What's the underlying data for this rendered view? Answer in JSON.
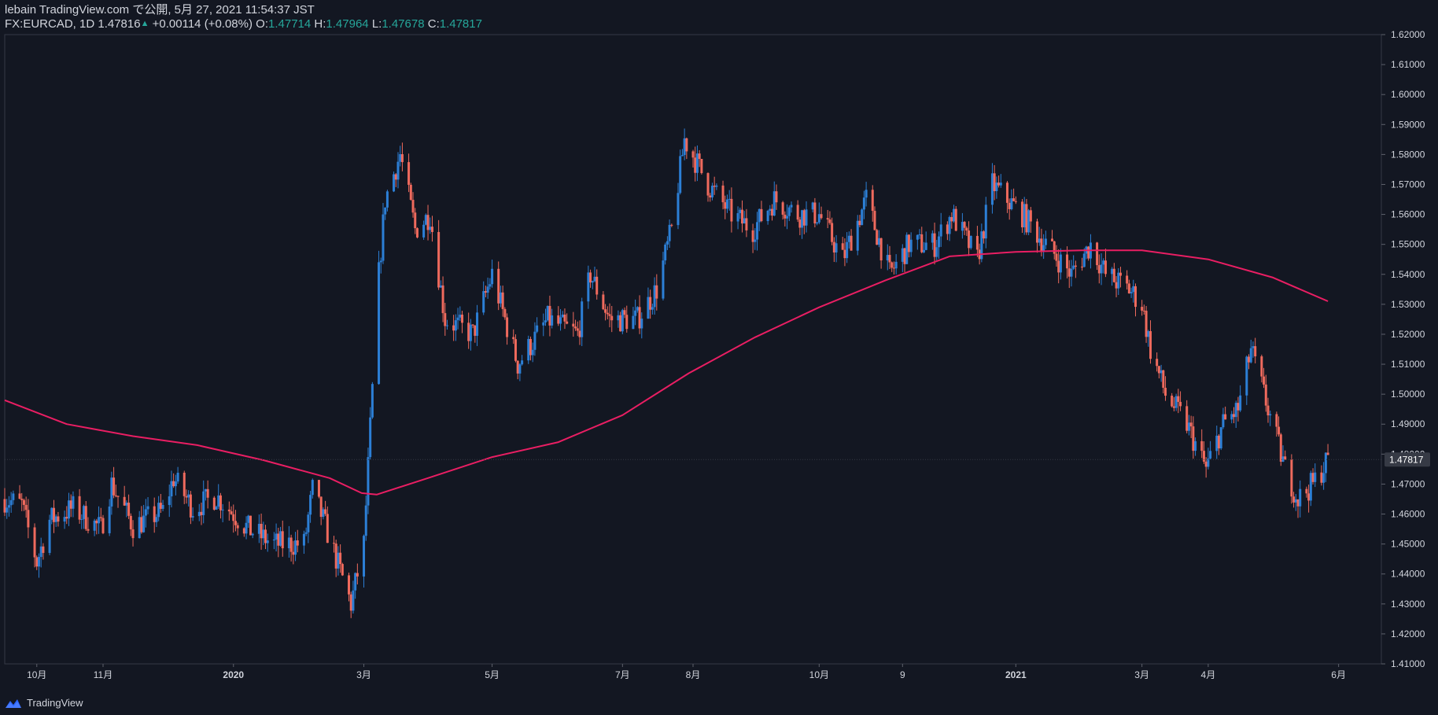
{
  "header": {
    "publish_line": "lebain TradingView.com で公開, 5月 27, 2021 11:54:37 JST",
    "symbol": "FX:EURCAD, 1D",
    "last": "1.47816",
    "change": "+0.00114 (+0.08%)",
    "o_label": "O:",
    "o_value": "1.47714",
    "h_label": "H:",
    "h_value": "1.47964",
    "l_label": "L:",
    "l_value": "1.47678",
    "c_label": "C:",
    "c_value": "1.47817"
  },
  "footer": {
    "brand": "TradingView"
  },
  "colors": {
    "background": "#131722",
    "up": "#2c7fd6",
    "down": "#ef6a5d",
    "ma": "#e91e63",
    "axis_text": "#d1d4dc"
  },
  "chart_data": {
    "type": "candlestick",
    "ylim": [
      1.41,
      1.62
    ],
    "y_ticks": [
      "1.41000",
      "1.42000",
      "1.43000",
      "1.44000",
      "1.45000",
      "1.46000",
      "1.47000",
      "1.48000",
      "1.49000",
      "1.50000",
      "1.51000",
      "1.52000",
      "1.53000",
      "1.54000",
      "1.55000",
      "1.56000",
      "1.57000",
      "1.58000",
      "1.59000",
      "1.60000",
      "1.61000",
      "1.62000"
    ],
    "last_price_label": "1.47817",
    "last_price": 1.47817,
    "x_ticks": [
      {
        "label": "10月",
        "date": "2019-10-01"
      },
      {
        "label": "11月",
        "date": "2019-11-01"
      },
      {
        "label": "2020",
        "date": "2020-01-01"
      },
      {
        "label": "3月",
        "date": "2020-03-02"
      },
      {
        "label": "5月",
        "date": "2020-05-01"
      },
      {
        "label": "7月",
        "date": "2020-07-01"
      },
      {
        "label": "8月",
        "date": "2020-08-03"
      },
      {
        "label": "10月",
        "date": "2020-10-01"
      },
      {
        "label": "9",
        "date": "2020-11-09"
      },
      {
        "label": "2021",
        "date": "2021-01-01"
      },
      {
        "label": "3月",
        "date": "2021-03-01"
      },
      {
        "label": "4月",
        "date": "2021-04-01"
      },
      {
        "label": "6月",
        "date": "2021-06-01"
      }
    ],
    "date_range": [
      "2019-09-16",
      "2021-06-21"
    ],
    "close_anchors": [
      [
        "2019-09-16",
        1.465
      ],
      [
        "2019-09-24",
        1.463
      ],
      [
        "2019-10-01",
        1.444
      ],
      [
        "2019-10-07",
        1.458
      ],
      [
        "2019-10-18",
        1.462
      ],
      [
        "2019-10-31",
        1.455
      ],
      [
        "2019-11-05",
        1.47
      ],
      [
        "2019-11-15",
        1.456
      ],
      [
        "2019-11-29",
        1.461
      ],
      [
        "2019-12-04",
        1.472
      ],
      [
        "2019-12-13",
        1.462
      ],
      [
        "2019-12-24",
        1.466
      ],
      [
        "2020-01-08",
        1.455
      ],
      [
        "2020-01-20",
        1.45
      ],
      [
        "2020-02-03",
        1.45
      ],
      [
        "2020-02-07",
        1.468
      ],
      [
        "2020-02-13",
        1.456
      ],
      [
        "2020-02-25",
        1.43
      ],
      [
        "2020-03-02",
        1.45
      ],
      [
        "2020-03-09",
        1.54
      ],
      [
        "2020-03-12",
        1.565
      ],
      [
        "2020-03-19",
        1.58
      ],
      [
        "2020-03-26",
        1.555
      ],
      [
        "2020-04-02",
        1.56
      ],
      [
        "2020-04-09",
        1.525
      ],
      [
        "2020-04-22",
        1.52
      ],
      [
        "2020-05-01",
        1.54
      ],
      [
        "2020-05-13",
        1.51
      ],
      [
        "2020-05-27",
        1.525
      ],
      [
        "2020-06-10",
        1.52
      ],
      [
        "2020-06-16",
        1.54
      ],
      [
        "2020-06-25",
        1.525
      ],
      [
        "2020-07-08",
        1.525
      ],
      [
        "2020-07-17",
        1.535
      ],
      [
        "2020-07-24",
        1.555
      ],
      [
        "2020-07-30",
        1.585
      ],
      [
        "2020-08-10",
        1.57
      ],
      [
        "2020-08-21",
        1.56
      ],
      [
        "2020-08-31",
        1.555
      ],
      [
        "2020-09-10",
        1.565
      ],
      [
        "2020-09-21",
        1.56
      ],
      [
        "2020-10-01",
        1.56
      ],
      [
        "2020-10-12",
        1.545
      ],
      [
        "2020-10-23",
        1.565
      ],
      [
        "2020-11-03",
        1.54
      ],
      [
        "2020-11-12",
        1.55
      ],
      [
        "2020-11-24",
        1.55
      ],
      [
        "2020-12-02",
        1.56
      ],
      [
        "2020-12-14",
        1.545
      ],
      [
        "2020-12-21",
        1.57
      ],
      [
        "2021-01-04",
        1.56
      ],
      [
        "2021-01-15",
        1.55
      ],
      [
        "2021-01-27",
        1.54
      ],
      [
        "2021-02-05",
        1.55
      ],
      [
        "2021-02-12",
        1.54
      ],
      [
        "2021-02-23",
        1.535
      ],
      [
        "2021-03-01",
        1.53
      ],
      [
        "2021-03-05",
        1.515
      ],
      [
        "2021-03-12",
        1.5
      ],
      [
        "2021-03-22",
        1.49
      ],
      [
        "2021-03-31",
        1.475
      ],
      [
        "2021-04-08",
        1.49
      ],
      [
        "2021-04-15",
        1.495
      ],
      [
        "2021-04-21",
        1.515
      ],
      [
        "2021-04-29",
        1.495
      ],
      [
        "2021-05-07",
        1.475
      ],
      [
        "2021-05-13",
        1.465
      ],
      [
        "2021-05-20",
        1.47
      ],
      [
        "2021-05-27",
        1.4782
      ]
    ],
    "ma_anchors": [
      [
        "2019-09-16",
        1.498
      ],
      [
        "2019-10-15",
        1.49
      ],
      [
        "2019-11-15",
        1.486
      ],
      [
        "2019-12-15",
        1.483
      ],
      [
        "2020-01-15",
        1.478
      ],
      [
        "2020-02-15",
        1.472
      ],
      [
        "2020-03-01",
        1.467
      ],
      [
        "2020-03-08",
        1.4665
      ],
      [
        "2020-04-01",
        1.472
      ],
      [
        "2020-05-01",
        1.479
      ],
      [
        "2020-06-01",
        1.484
      ],
      [
        "2020-07-01",
        1.493
      ],
      [
        "2020-08-01",
        1.507
      ],
      [
        "2020-09-01",
        1.519
      ],
      [
        "2020-10-01",
        1.529
      ],
      [
        "2020-11-01",
        1.538
      ],
      [
        "2020-12-01",
        1.546
      ],
      [
        "2021-01-01",
        1.5475
      ],
      [
        "2021-02-01",
        1.548
      ],
      [
        "2021-03-01",
        1.548
      ],
      [
        "2021-04-01",
        1.545
      ],
      [
        "2021-05-01",
        1.539
      ],
      [
        "2021-05-27",
        1.531
      ]
    ]
  }
}
